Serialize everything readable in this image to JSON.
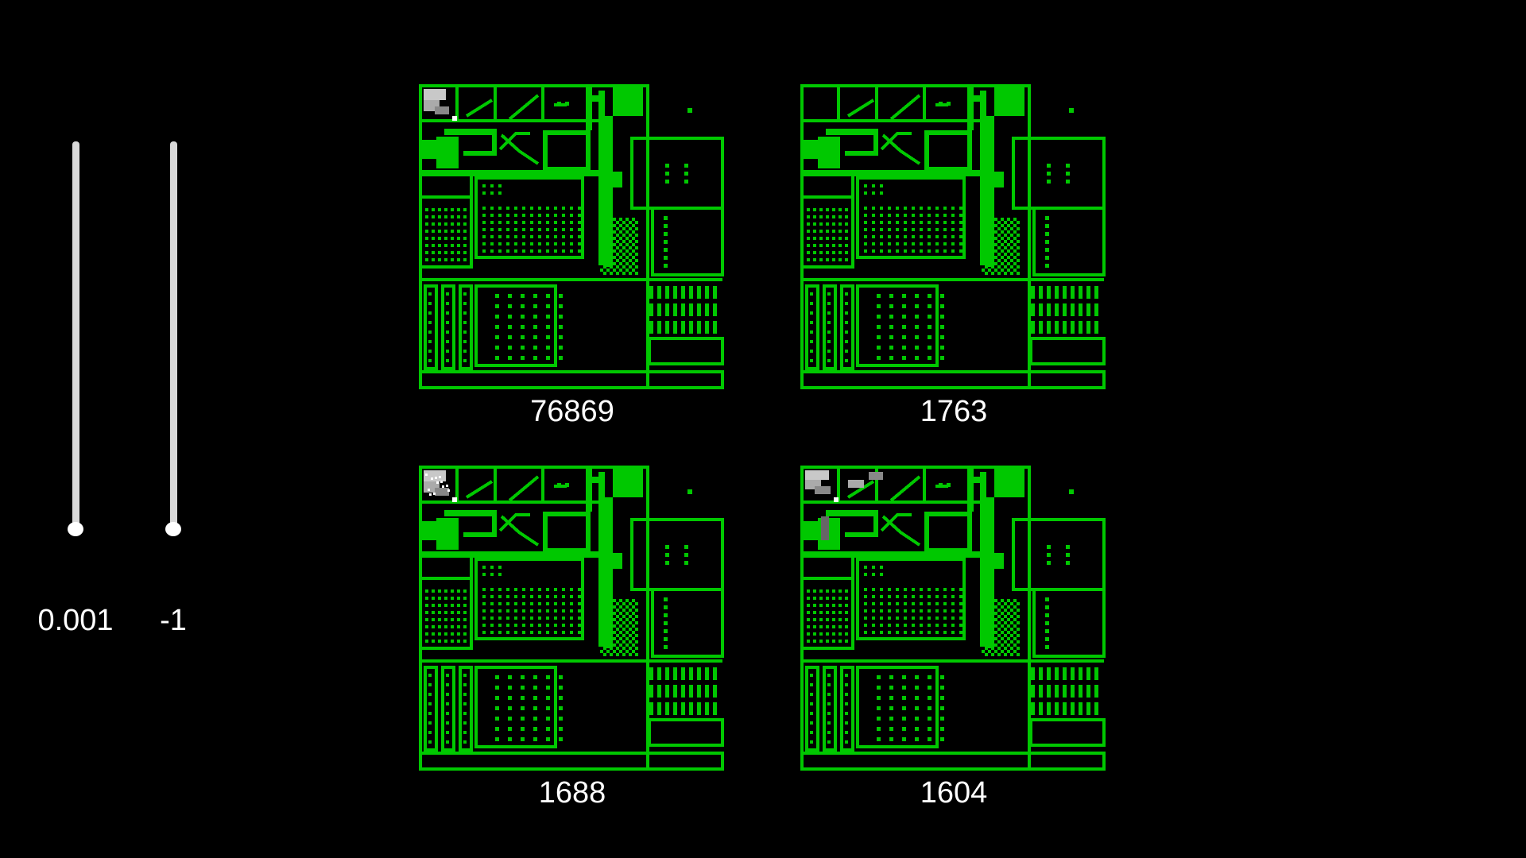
{
  "colors": {
    "background": "#000000",
    "map_green": "#00c800",
    "text": "#ffffff",
    "slider_track": "#d9d9d9"
  },
  "sliders": [
    {
      "value_label": "0.001",
      "level": 1.0
    },
    {
      "value_label": "-1",
      "level": 1.0
    }
  ],
  "panels": [
    {
      "label": "76869",
      "overlay": "top-left-gradient"
    },
    {
      "label": "1763",
      "overlay": "none"
    },
    {
      "label": "1688",
      "overlay": "top-left-gradient-noisy"
    },
    {
      "label": "1604",
      "overlay": "top-left-trail"
    }
  ]
}
